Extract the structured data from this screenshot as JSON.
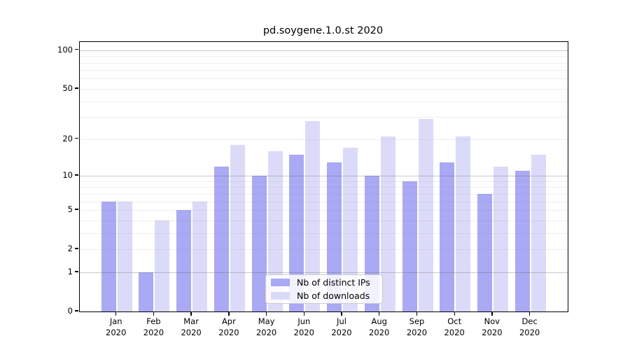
{
  "title": "pd.soygene.1.0.st 2020",
  "chart_data": {
    "type": "bar",
    "title": "pd.soygene.1.0.st 2020",
    "y_scale": "log1p",
    "grid": "on",
    "legend_position": "lower center",
    "months": [
      "Jan",
      "Feb",
      "Mar",
      "Apr",
      "May",
      "Jun",
      "Jul",
      "Aug",
      "Sep",
      "Oct",
      "Nov",
      "Dec"
    ],
    "year_label": "2020",
    "series": [
      {
        "name": "Nb of distinct IPs",
        "color": "#a9a9f4",
        "values": [
          6,
          1,
          5,
          12,
          10,
          15,
          13,
          10,
          9,
          13,
          7,
          11
        ]
      },
      {
        "name": "Nb of downloads",
        "color": "#dbdbf9",
        "values": [
          6,
          4,
          6,
          18,
          16,
          28,
          17,
          21,
          29,
          21,
          12,
          15
        ]
      }
    ],
    "y_ticks": [
      0,
      1,
      2,
      5,
      10,
      20,
      50,
      100
    ],
    "y_major_gridlines": [
      1,
      10,
      100
    ],
    "y_minor_gridlines": [
      2,
      3,
      4,
      5,
      6,
      7,
      8,
      9,
      20,
      30,
      40,
      50,
      60,
      70,
      80,
      90
    ],
    "ylim": [
      0,
      116
    ]
  },
  "colors": {
    "bar_distinct_ips": "#a9a9f4",
    "bar_downloads": "#dbdbf9",
    "spine": "#000000",
    "major_grid": "#cccccc",
    "minor_grid": "#ebebeb",
    "background": "#ffffff"
  }
}
